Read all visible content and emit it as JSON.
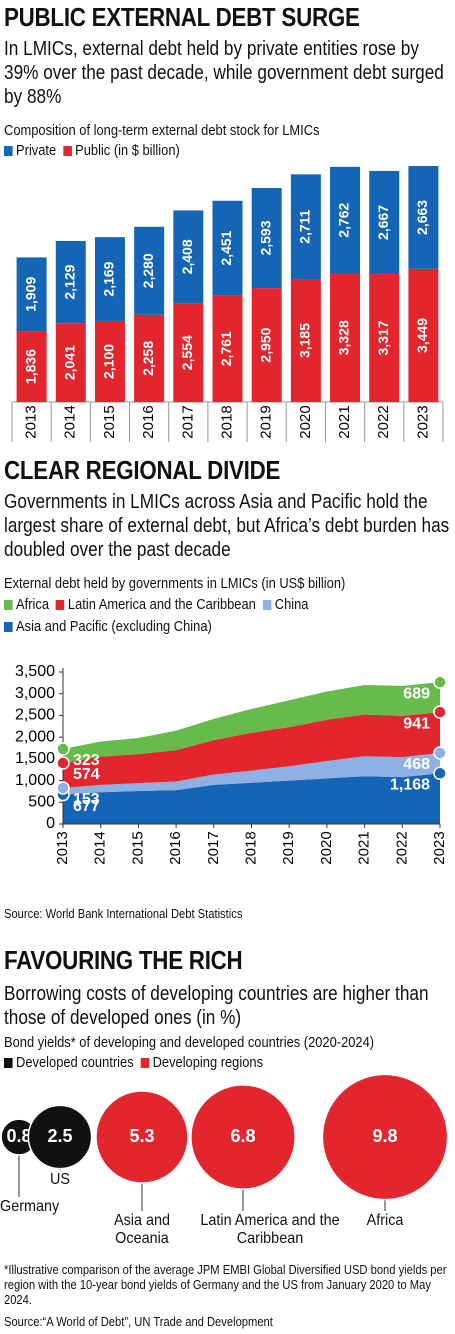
{
  "chart_data": [
    {
      "type": "bar",
      "stacked": true,
      "title": "PUBLIC EXTERNAL DEBT SURGE",
      "subtitle": "In LMICs, external debt held by private entities rose by 39% over the past decade, while government debt surged by 88%",
      "caption": "Composition of long-term external debt stock for LMICs",
      "categories": [
        "2013",
        "2014",
        "2015",
        "2016",
        "2017",
        "2018",
        "2019",
        "2020",
        "2021",
        "2022",
        "2023"
      ],
      "series": [
        {
          "name": "Private",
          "color": "#1565b7",
          "values": [
            1909,
            2129,
            2169,
            2280,
            2408,
            2451,
            2593,
            2711,
            2762,
            2667,
            2663
          ],
          "value_labels": [
            "1,909",
            "2,129",
            "2,169",
            "2,280",
            "2,408",
            "2,451",
            "2,593",
            "2,711",
            "2,762",
            "2,667",
            "2,663"
          ]
        },
        {
          "name": "Public (in $ billion)",
          "color": "#e3262e",
          "values": [
            1836,
            2041,
            2100,
            2258,
            2554,
            2761,
            2950,
            3185,
            3328,
            3317,
            3449
          ],
          "value_labels": [
            "1,836",
            "2,041",
            "2,100",
            "2,258",
            "2,554",
            "2,761",
            "2,950",
            "3,185",
            "3,328",
            "3,317",
            "3,449"
          ]
        }
      ]
    },
    {
      "type": "area",
      "stacked": true,
      "title": "CLEAR REGIONAL DIVIDE",
      "subtitle": "Governments in LMICs across Asia and Pacific hold the largest share of external debt, but Africa’s debt burden has doubled over the past decade",
      "caption": "External debt held by governments in LMICs (in US$ billion)",
      "categories": [
        "2013",
        "2014",
        "2015",
        "2016",
        "2017",
        "2018",
        "2019",
        "2020",
        "2021",
        "2022",
        "2023"
      ],
      "ylim": [
        0,
        3500
      ],
      "yticks": [
        0,
        500,
        {
          "value": 1000,
          "label": "1,000"
        },
        {
          "value": 1500,
          "label": "1,500"
        },
        {
          "value": 2000,
          "label": "2,000"
        },
        {
          "value": 2500,
          "label": "2,500"
        },
        {
          "value": 3000,
          "label": "3,000"
        },
        {
          "value": 3500,
          "label": "3,500"
        }
      ],
      "series": [
        {
          "name": "Africa",
          "color": "#66bb4a",
          "values": [
            323,
            350,
            370,
            450,
            490,
            550,
            620,
            650,
            680,
            690,
            689
          ],
          "value_labels": [
            "323",
            null,
            null,
            null,
            null,
            null,
            null,
            null,
            null,
            null,
            "689"
          ]
        },
        {
          "name": "Latin America and the Caribbean",
          "color": "#e3262e",
          "values": [
            574,
            650,
            670,
            720,
            790,
            870,
            900,
            950,
            960,
            950,
            941
          ],
          "value_labels": [
            "574",
            null,
            null,
            null,
            null,
            null,
            null,
            null,
            null,
            null,
            "941"
          ]
        },
        {
          "name": "China",
          "color": "#8fb0e2",
          "values": [
            153,
            170,
            180,
            200,
            240,
            280,
            330,
            400,
            460,
            460,
            468
          ],
          "value_labels": [
            "153",
            null,
            null,
            null,
            null,
            null,
            null,
            null,
            null,
            null,
            "468"
          ]
        },
        {
          "name": "Asia and Pacific (excluding China)",
          "color": "#1565b7",
          "values": [
            677,
            730,
            760,
            780,
            900,
            950,
            1000,
            1050,
            1100,
            1080,
            1168
          ],
          "value_labels": [
            "677",
            null,
            null,
            null,
            null,
            null,
            null,
            null,
            null,
            null,
            "1,168"
          ]
        }
      ],
      "source": "Source: World Bank International Debt Statistics"
    },
    {
      "type": "bubble",
      "title": "FAVOURING THE RICH",
      "subtitle": "Borrowing costs of developing countries are higher than those of developed ones (in %)",
      "caption": "Bond yields* of developing and developed countries (2020-2024)",
      "series": [
        {
          "name": "Developed countries",
          "color": "#111111",
          "categories": [
            "Germany",
            "US"
          ],
          "values": [
            0.8,
            2.5
          ]
        },
        {
          "name": "Developing regions",
          "color": "#e3262e",
          "categories": [
            "Asia and Oceania",
            "Latin America and the Caribbean",
            "Africa"
          ],
          "values": [
            5.3,
            6.8,
            9.8
          ]
        }
      ],
      "footnote": "*Illustrative comparison of the average JPM EMBI Global Diversified USD bond yields per region with the 10-year bond yields of Germany and the US from January 2020 to May 2024.",
      "source": "Source:“A World of Debt”, UN Trade and Development"
    }
  ]
}
